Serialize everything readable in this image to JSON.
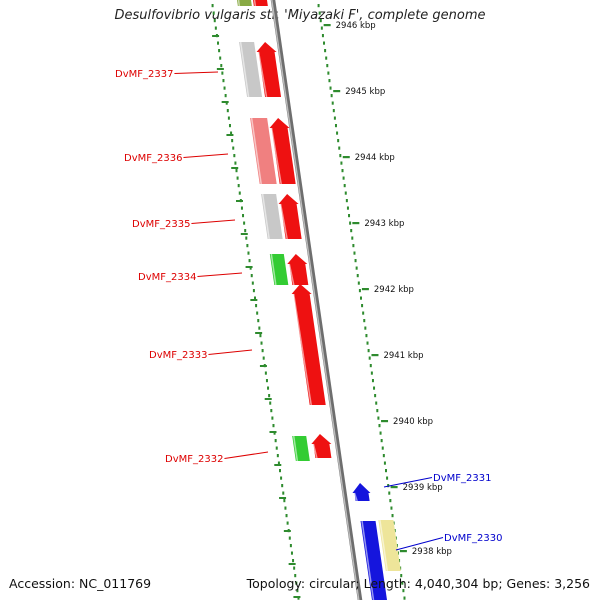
{
  "title": "Desulfovibrio vulgaris str. 'Miyazaki F', complete genome",
  "footer": {
    "accession": "Accession: NC_011769",
    "topology": "Topology: circular; Length: 4,040,304 bp; Genes: 3,256"
  },
  "colors": {
    "backbone": "#8c8c8c",
    "dots": "#2e8b2e",
    "red": "#ee1111",
    "pink": "#f08080",
    "grey": "#c8c8c8",
    "green": "#33cc33",
    "blue": "#1515dd",
    "khaki": "#eee59a",
    "label_red": "#dd0000",
    "label_blue": "#0000cc"
  },
  "scale": {
    "unit": "kbp",
    "ticks": [
      "2946 kbp",
      "2945 kbp",
      "2944 kbp",
      "2943 kbp",
      "2942 kbp",
      "2941 kbp",
      "2940 kbp",
      "2939 kbp",
      "2938 kbp"
    ]
  },
  "genes": [
    {
      "label": "DvMF_2337",
      "color": "label_red"
    },
    {
      "label": "DvMF_2336",
      "color": "label_red"
    },
    {
      "label": "DvMF_2335",
      "color": "label_red"
    },
    {
      "label": "DvMF_2334",
      "color": "label_red"
    },
    {
      "label": "DvMF_2333",
      "color": "label_red"
    },
    {
      "label": "DvMF_2332",
      "color": "label_red"
    },
    {
      "label": "DvMF_2331",
      "color": "label_blue"
    },
    {
      "label": "DvMF_2330",
      "color": "label_blue"
    }
  ]
}
